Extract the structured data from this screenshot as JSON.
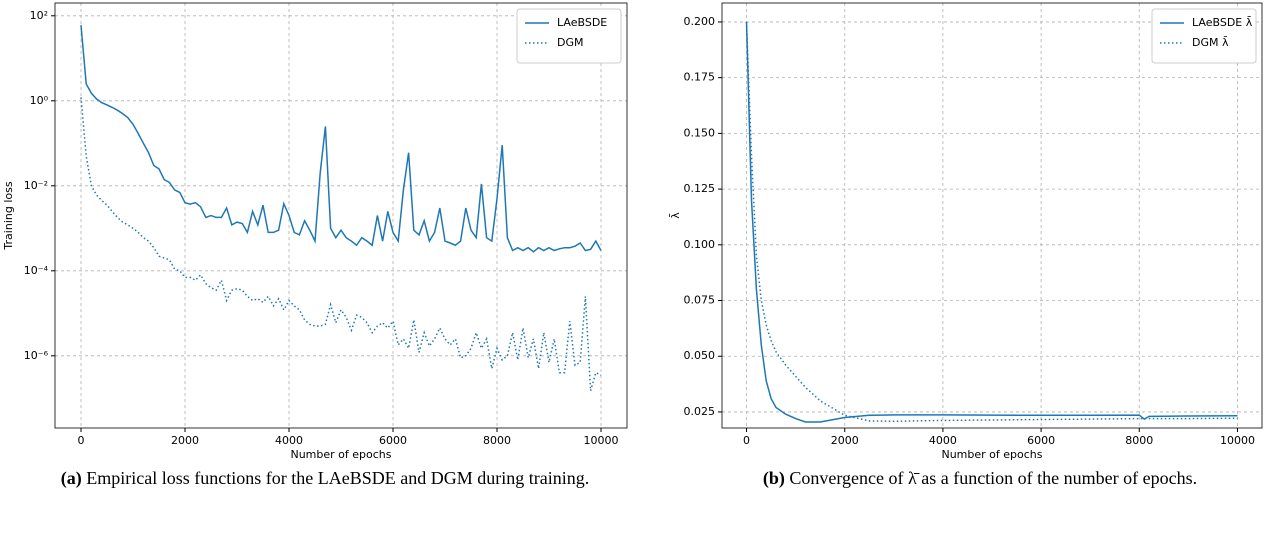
{
  "chart_data": [
    {
      "type": "line",
      "xlabel": "Number of epochs",
      "ylabel": "Training loss",
      "log_y": true,
      "grid": true,
      "legend": "upper-right",
      "caption_label": "(a)",
      "caption": "Empirical loss functions for the LAeBSDE and DGM during training.",
      "xlim": [
        -500,
        10500
      ],
      "xticks": [
        0,
        2000,
        4000,
        6000,
        8000,
        10000
      ],
      "ylim": [
        2e-08,
        200
      ],
      "yticks": [
        {
          "value": 1e-06,
          "label": "10⁻⁶"
        },
        {
          "value": 0.0001,
          "label": "10⁻⁴"
        },
        {
          "value": 0.01,
          "label": "10⁻²"
        },
        {
          "value": 1,
          "label": "10⁰"
        },
        {
          "value": 100,
          "label": "10²"
        }
      ],
      "x": [
        0,
        100,
        200,
        300,
        400,
        500,
        600,
        700,
        800,
        900,
        1000,
        1100,
        1200,
        1300,
        1400,
        1500,
        1600,
        1700,
        1800,
        1900,
        2000,
        2100,
        2200,
        2300,
        2400,
        2500,
        2600,
        2700,
        2800,
        2900,
        3000,
        3100,
        3200,
        3300,
        3400,
        3500,
        3600,
        3700,
        3800,
        3900,
        4000,
        4100,
        4200,
        4300,
        4400,
        4500,
        4600,
        4700,
        4800,
        4900,
        5000,
        5100,
        5200,
        5300,
        5400,
        5500,
        5600,
        5700,
        5800,
        5900,
        6000,
        6100,
        6200,
        6300,
        6400,
        6500,
        6600,
        6700,
        6800,
        6900,
        7000,
        7100,
        7200,
        7300,
        7400,
        7500,
        7600,
        7700,
        7800,
        7900,
        8000,
        8100,
        8200,
        8300,
        8400,
        8500,
        8600,
        8700,
        8800,
        8900,
        9000,
        9100,
        9200,
        9300,
        9400,
        9500,
        9600,
        9700,
        9800,
        9900,
        10000
      ],
      "series": [
        {
          "name": "LAeBSDE",
          "color": "#1f77b4",
          "linestyle": "solid",
          "values": [
            60,
            2.5,
            1.5,
            1.1,
            0.9,
            0.8,
            0.7,
            0.6,
            0.5,
            0.4,
            0.28,
            0.17,
            0.1,
            0.06,
            0.03,
            0.025,
            0.014,
            0.012,
            0.008,
            0.007,
            0.004,
            0.0037,
            0.004,
            0.0032,
            0.0018,
            0.002,
            0.0018,
            0.0018,
            0.003,
            0.0012,
            0.0014,
            0.0013,
            0.0008,
            0.0025,
            0.0012,
            0.0035,
            0.0008,
            0.0008,
            0.0009,
            0.0038,
            0.002,
            0.0008,
            0.0007,
            0.0015,
            0.0009,
            0.0005,
            0.02,
            0.25,
            0.001,
            0.0006,
            0.0009,
            0.0006,
            0.0005,
            0.0004,
            0.0006,
            0.0005,
            0.0004,
            0.002,
            0.0005,
            0.0025,
            0.0008,
            0.0005,
            0.008,
            0.06,
            0.0009,
            0.0007,
            0.0015,
            0.0005,
            0.0008,
            0.003,
            0.0005,
            0.00045,
            0.0004,
            0.0005,
            0.003,
            0.0009,
            0.0006,
            0.011,
            0.0006,
            0.0005,
            0.005,
            0.09,
            0.0006,
            0.0003,
            0.00035,
            0.0003,
            0.00035,
            0.00028,
            0.00035,
            0.0003,
            0.00035,
            0.0003,
            0.00033,
            0.00035,
            0.00035,
            0.00038,
            0.00045,
            0.0003,
            0.00032,
            0.0005,
            0.0003
          ]
        },
        {
          "name": "DGM",
          "color": "#1f77b4",
          "linestyle": "dotted",
          "values": [
            1.2,
            0.05,
            0.01,
            0.006,
            0.0045,
            0.0035,
            0.0025,
            0.0018,
            0.0014,
            0.0012,
            0.001,
            0.0008,
            0.0006,
            0.0005,
            0.00035,
            0.00022,
            0.0002,
            0.00018,
            0.00011,
            0.0001,
            7e-05,
            7e-05,
            6e-05,
            8e-05,
            5e-05,
            4e-05,
            3.5e-05,
            6e-05,
            2e-05,
            3.5e-05,
            3.8e-05,
            3.5e-05,
            2.5e-05,
            2e-05,
            2.2e-05,
            1.8e-05,
            2.5e-05,
            1.5e-05,
            2.2e-05,
            1.2e-05,
            2e-05,
            1.5e-05,
            1.2e-05,
            7e-06,
            5.5e-06,
            5e-06,
            5e-06,
            5.5e-06,
            1.6e-05,
            6e-06,
            1.2e-05,
            8e-06,
            4e-06,
            9e-06,
            8e-06,
            6e-06,
            3.5e-06,
            5e-06,
            6e-06,
            4.5e-06,
            6.5e-06,
            1.8e-06,
            2.5e-06,
            1.5e-06,
            7e-06,
            1.2e-06,
            3.5e-06,
            1.7e-06,
            2.5e-06,
            4.5e-06,
            2.5e-06,
            1.8e-06,
            2.5e-06,
            9e-07,
            1e-06,
            1.5e-06,
            3.5e-06,
            1.5e-06,
            2.5e-06,
            5e-07,
            1.5e-06,
            8e-07,
            1e-06,
            3.5e-06,
            8e-07,
            4.5e-06,
            9e-07,
            2.5e-06,
            5e-07,
            3.5e-06,
            7e-07,
            2.5e-06,
            4e-07,
            4e-07,
            6.5e-06,
            6e-07,
            7e-07,
            2.5e-05,
            1.5e-07,
            4e-07,
            3.5e-07
          ]
        }
      ]
    },
    {
      "type": "line",
      "xlabel": "Number of epochs",
      "ylabel": "λ̄",
      "log_y": false,
      "grid": true,
      "legend": "upper-right",
      "caption_label": "(b)",
      "caption": "Convergence of λ̄ as a function of the number of epochs.",
      "xlim": [
        -500,
        10500
      ],
      "xticks": [
        0,
        2000,
        4000,
        6000,
        8000,
        10000
      ],
      "ylim": [
        0.0178,
        0.2085
      ],
      "yticks": [
        0.025,
        {
          "value": 0.05,
          "label": "0.050"
        },
        0.075,
        {
          "value": 0.1,
          "label": "0.100"
        },
        0.125,
        {
          "value": 0.15,
          "label": "0.150"
        },
        0.175,
        {
          "value": 0.2,
          "label": "0.200"
        }
      ],
      "x": [
        0,
        100,
        200,
        300,
        400,
        500,
        600,
        800,
        1000,
        1200,
        1500,
        2000,
        2500,
        3000,
        4000,
        5000,
        6000,
        7000,
        8000,
        8100,
        8200,
        9000,
        10000
      ],
      "series": [
        {
          "name": "LAeBSDE λ̄",
          "color": "#1f77b4",
          "linestyle": "solid",
          "values": [
            0.2,
            0.12,
            0.08,
            0.055,
            0.039,
            0.031,
            0.027,
            0.024,
            0.022,
            0.0205,
            0.0205,
            0.0225,
            0.0235,
            0.0237,
            0.0237,
            0.0236,
            0.0235,
            0.0235,
            0.0236,
            0.0218,
            0.023,
            0.0232,
            0.0233
          ]
        },
        {
          "name": "DGM λ̄",
          "color": "#1f77b4",
          "linestyle": "dotted",
          "values": [
            0.2,
            0.14,
            0.095,
            0.075,
            0.064,
            0.057,
            0.052,
            0.046,
            0.041,
            0.036,
            0.03,
            0.0235,
            0.021,
            0.0208,
            0.0212,
            0.0214,
            0.0216,
            0.0218,
            0.022,
            0.022,
            0.022,
            0.022,
            0.0222
          ]
        }
      ]
    }
  ]
}
